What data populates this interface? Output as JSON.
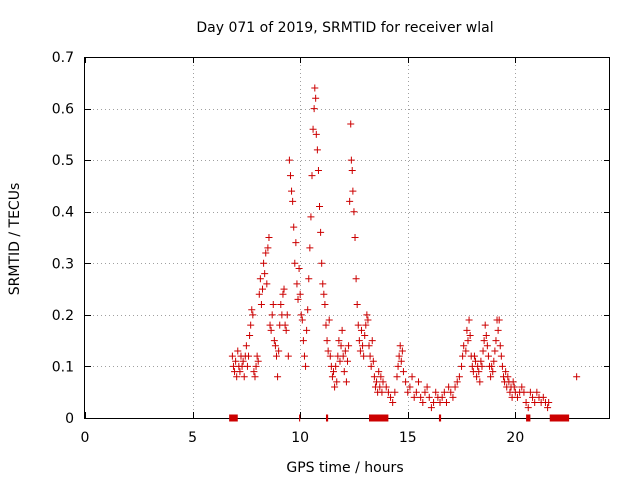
{
  "chart_data": {
    "type": "scatter",
    "title": "Day 071 of 2019, SRMTID for receiver wlal",
    "xlabel": "GPS time / hours",
    "ylabel": "SRMTID / TECUs",
    "xlim": [
      0,
      24.4
    ],
    "ylim": [
      0,
      0.7
    ],
    "x_ticks": [
      0,
      5,
      10,
      15,
      20
    ],
    "x_tick_labels": [
      "0",
      "5",
      "10",
      "15",
      "20"
    ],
    "y_ticks": [
      0,
      0.1,
      0.2,
      0.3,
      0.4,
      0.5,
      0.6,
      0.7
    ],
    "y_tick_labels": [
      "0",
      "0.1",
      "0.2",
      "0.3",
      "0.4",
      "0.5",
      "0.6",
      "0.7"
    ],
    "grid": true,
    "marker": "+",
    "color": "#cc0000",
    "series": [
      {
        "name": "SRMTID",
        "points": [
          [
            6.85,
            0.12
          ],
          [
            6.9,
            0.1
          ],
          [
            6.95,
            0.09
          ],
          [
            7.0,
            0.11
          ],
          [
            7.05,
            0.08
          ],
          [
            7.1,
            0.13
          ],
          [
            7.15,
            0.1
          ],
          [
            7.2,
            0.09
          ],
          [
            7.25,
            0.12
          ],
          [
            7.3,
            0.1
          ],
          [
            7.35,
            0.11
          ],
          [
            7.4,
            0.08
          ],
          [
            7.45,
            0.12
          ],
          [
            7.5,
            0.14
          ],
          [
            7.55,
            0.1
          ],
          [
            7.6,
            0.12
          ],
          [
            7.65,
            0.16
          ],
          [
            7.7,
            0.18
          ],
          [
            7.75,
            0.21
          ],
          [
            7.8,
            0.2
          ],
          [
            7.85,
            0.09
          ],
          [
            7.9,
            0.08
          ],
          [
            7.95,
            0.1
          ],
          [
            8.0,
            0.12
          ],
          [
            8.05,
            0.11
          ],
          [
            8.1,
            0.24
          ],
          [
            8.15,
            0.27
          ],
          [
            8.2,
            0.22
          ],
          [
            8.25,
            0.25
          ],
          [
            8.3,
            0.3
          ],
          [
            8.35,
            0.28
          ],
          [
            8.4,
            0.32
          ],
          [
            8.45,
            0.26
          ],
          [
            8.5,
            0.33
          ],
          [
            8.55,
            0.35
          ],
          [
            8.6,
            0.18
          ],
          [
            8.65,
            0.17
          ],
          [
            8.7,
            0.2
          ],
          [
            8.75,
            0.22
          ],
          [
            8.8,
            0.15
          ],
          [
            8.85,
            0.14
          ],
          [
            8.9,
            0.12
          ],
          [
            8.95,
            0.08
          ],
          [
            9.0,
            0.13
          ],
          [
            9.05,
            0.18
          ],
          [
            9.1,
            0.22
          ],
          [
            9.15,
            0.2
          ],
          [
            9.2,
            0.24
          ],
          [
            9.25,
            0.25
          ],
          [
            9.3,
            0.18
          ],
          [
            9.35,
            0.17
          ],
          [
            9.4,
            0.2
          ],
          [
            9.45,
            0.12
          ],
          [
            9.5,
            0.5
          ],
          [
            9.55,
            0.47
          ],
          [
            9.6,
            0.44
          ],
          [
            9.65,
            0.42
          ],
          [
            9.7,
            0.37
          ],
          [
            9.75,
            0.3
          ],
          [
            9.8,
            0.34
          ],
          [
            9.85,
            0.26
          ],
          [
            9.9,
            0.23
          ],
          [
            9.95,
            0.29
          ],
          [
            10.0,
            0.24
          ],
          [
            10.05,
            0.2
          ],
          [
            10.1,
            0.19
          ],
          [
            10.15,
            0.15
          ],
          [
            10.2,
            0.12
          ],
          [
            10.25,
            0.1
          ],
          [
            10.3,
            0.17
          ],
          [
            10.35,
            0.21
          ],
          [
            10.4,
            0.27
          ],
          [
            10.45,
            0.33
          ],
          [
            10.5,
            0.39
          ],
          [
            10.55,
            0.47
          ],
          [
            10.6,
            0.56
          ],
          [
            10.65,
            0.6
          ],
          [
            10.68,
            0.64
          ],
          [
            10.72,
            0.62
          ],
          [
            10.75,
            0.55
          ],
          [
            10.8,
            0.52
          ],
          [
            10.85,
            0.48
          ],
          [
            10.9,
            0.41
          ],
          [
            10.95,
            0.36
          ],
          [
            11.0,
            0.3
          ],
          [
            11.05,
            0.26
          ],
          [
            11.1,
            0.24
          ],
          [
            11.15,
            0.22
          ],
          [
            11.2,
            0.18
          ],
          [
            11.25,
            0.15
          ],
          [
            11.3,
            0.13
          ],
          [
            11.35,
            0.19
          ],
          [
            11.4,
            0.12
          ],
          [
            11.45,
            0.1
          ],
          [
            11.5,
            0.08
          ],
          [
            11.55,
            0.09
          ],
          [
            11.6,
            0.06
          ],
          [
            11.65,
            0.1
          ],
          [
            11.7,
            0.07
          ],
          [
            11.75,
            0.12
          ],
          [
            11.8,
            0.15
          ],
          [
            11.85,
            0.11
          ],
          [
            11.9,
            0.14
          ],
          [
            11.95,
            0.17
          ],
          [
            12.0,
            0.12
          ],
          [
            12.05,
            0.09
          ],
          [
            12.1,
            0.13
          ],
          [
            12.15,
            0.07
          ],
          [
            12.2,
            0.11
          ],
          [
            12.25,
            0.14
          ],
          [
            12.3,
            0.42
          ],
          [
            12.35,
            0.57
          ],
          [
            12.38,
            0.5
          ],
          [
            12.42,
            0.48
          ],
          [
            12.45,
            0.44
          ],
          [
            12.5,
            0.4
          ],
          [
            12.55,
            0.35
          ],
          [
            12.6,
            0.27
          ],
          [
            12.65,
            0.22
          ],
          [
            12.7,
            0.18
          ],
          [
            12.75,
            0.15
          ],
          [
            12.8,
            0.13
          ],
          [
            12.85,
            0.17
          ],
          [
            12.9,
            0.14
          ],
          [
            12.95,
            0.12
          ],
          [
            13.0,
            0.16
          ],
          [
            13.05,
            0.18
          ],
          [
            13.1,
            0.2
          ],
          [
            13.15,
            0.19
          ],
          [
            13.2,
            0.14
          ],
          [
            13.25,
            0.12
          ],
          [
            13.3,
            0.1
          ],
          [
            13.35,
            0.15
          ],
          [
            13.4,
            0.11
          ],
          [
            13.45,
            0.08
          ],
          [
            13.5,
            0.06
          ],
          [
            13.55,
            0.07
          ],
          [
            13.6,
            0.05
          ],
          [
            13.65,
            0.09
          ],
          [
            13.7,
            0.06
          ],
          [
            13.75,
            0.08
          ],
          [
            13.8,
            0.05
          ],
          [
            13.85,
            0.07
          ],
          [
            14.0,
            0.06
          ],
          [
            14.1,
            0.05
          ],
          [
            14.2,
            0.04
          ],
          [
            14.3,
            0.03
          ],
          [
            14.4,
            0.05
          ],
          [
            14.5,
            0.08
          ],
          [
            14.55,
            0.1
          ],
          [
            14.6,
            0.12
          ],
          [
            14.65,
            0.14
          ],
          [
            14.7,
            0.11
          ],
          [
            14.75,
            0.13
          ],
          [
            14.8,
            0.09
          ],
          [
            14.9,
            0.07
          ],
          [
            15.0,
            0.05
          ],
          [
            15.1,
            0.06
          ],
          [
            15.2,
            0.08
          ],
          [
            15.3,
            0.04
          ],
          [
            15.4,
            0.05
          ],
          [
            15.5,
            0.07
          ],
          [
            15.6,
            0.04
          ],
          [
            15.7,
            0.03
          ],
          [
            15.8,
            0.05
          ],
          [
            15.9,
            0.06
          ],
          [
            16.0,
            0.04
          ],
          [
            16.1,
            0.02
          ],
          [
            16.2,
            0.03
          ],
          [
            16.3,
            0.05
          ],
          [
            16.4,
            0.04
          ],
          [
            16.5,
            0.03
          ],
          [
            16.6,
            0.04
          ],
          [
            16.7,
            0.05
          ],
          [
            16.8,
            0.03
          ],
          [
            16.9,
            0.06
          ],
          [
            17.0,
            0.05
          ],
          [
            17.1,
            0.04
          ],
          [
            17.2,
            0.06
          ],
          [
            17.3,
            0.07
          ],
          [
            17.4,
            0.08
          ],
          [
            17.5,
            0.1
          ],
          [
            17.55,
            0.12
          ],
          [
            17.6,
            0.14
          ],
          [
            17.7,
            0.13
          ],
          [
            17.75,
            0.17
          ],
          [
            17.8,
            0.15
          ],
          [
            17.85,
            0.19
          ],
          [
            17.9,
            0.16
          ],
          [
            17.95,
            0.12
          ],
          [
            18.0,
            0.1
          ],
          [
            18.05,
            0.09
          ],
          [
            18.1,
            0.12
          ],
          [
            18.15,
            0.11
          ],
          [
            18.2,
            0.08
          ],
          [
            18.25,
            0.1
          ],
          [
            18.3,
            0.09
          ],
          [
            18.35,
            0.07
          ],
          [
            18.4,
            0.11
          ],
          [
            18.45,
            0.1
          ],
          [
            18.5,
            0.13
          ],
          [
            18.55,
            0.15
          ],
          [
            18.6,
            0.18
          ],
          [
            18.65,
            0.16
          ],
          [
            18.7,
            0.14
          ],
          [
            18.75,
            0.12
          ],
          [
            18.8,
            0.1
          ],
          [
            18.85,
            0.08
          ],
          [
            18.9,
            0.1
          ],
          [
            18.95,
            0.09
          ],
          [
            19.0,
            0.11
          ],
          [
            19.05,
            0.13
          ],
          [
            19.1,
            0.15
          ],
          [
            19.15,
            0.19
          ],
          [
            19.2,
            0.17
          ],
          [
            19.25,
            0.19
          ],
          [
            19.3,
            0.14
          ],
          [
            19.35,
            0.12
          ],
          [
            19.4,
            0.1
          ],
          [
            19.45,
            0.08
          ],
          [
            19.5,
            0.07
          ],
          [
            19.55,
            0.09
          ],
          [
            19.6,
            0.06
          ],
          [
            19.65,
            0.08
          ],
          [
            19.7,
            0.07
          ],
          [
            19.75,
            0.05
          ],
          [
            19.8,
            0.06
          ],
          [
            19.85,
            0.04
          ],
          [
            19.9,
            0.07
          ],
          [
            19.95,
            0.06
          ],
          [
            20.0,
            0.05
          ],
          [
            20.1,
            0.04
          ],
          [
            20.2,
            0.05
          ],
          [
            20.3,
            0.06
          ],
          [
            20.4,
            0.05
          ],
          [
            20.5,
            0.03
          ],
          [
            20.6,
            0.02
          ],
          [
            20.7,
            0.05
          ],
          [
            20.8,
            0.04
          ],
          [
            20.9,
            0.03
          ],
          [
            21.0,
            0.05
          ],
          [
            21.1,
            0.04
          ],
          [
            21.2,
            0.03
          ],
          [
            21.3,
            0.04
          ],
          [
            21.4,
            0.03
          ],
          [
            21.5,
            0.02
          ],
          [
            21.55,
            0.03
          ],
          [
            22.85,
            0.08
          ]
        ]
      },
      {
        "name": "zero-line",
        "segments": [
          [
            6.7,
            7.1
          ],
          [
            9.95,
            10.0
          ],
          [
            11.2,
            11.3
          ],
          [
            13.2,
            14.1
          ],
          [
            16.45,
            16.55
          ],
          [
            20.5,
            20.7
          ],
          [
            21.6,
            22.5
          ]
        ]
      }
    ]
  }
}
